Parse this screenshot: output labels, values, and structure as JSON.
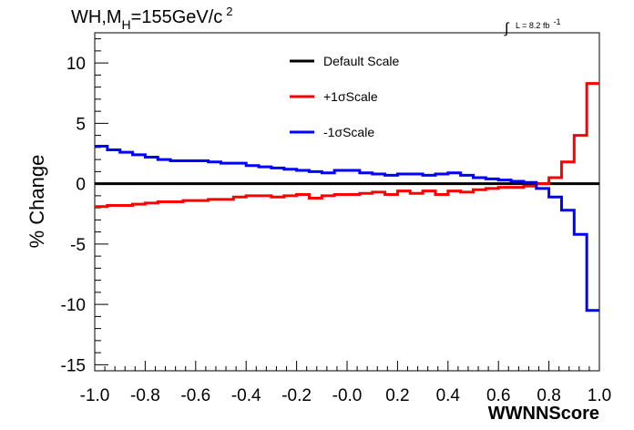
{
  "chart_data": {
    "type": "line",
    "title": {
      "text": "WH,M",
      "subscript": "H",
      "value": "=155GeV/c",
      "superscript": "2"
    },
    "luminosity": {
      "sign": "∫",
      "text": "L = 8.2 fb",
      "superscript": "-1"
    },
    "xlabel": "WWNNScore",
    "ylabel": "% Change",
    "xlim": [
      -1.0,
      1.0
    ],
    "ylim": [
      -15.5,
      12.5
    ],
    "x_ticks": [
      "-1.0",
      "-0.8",
      "-0.6",
      "-0.4",
      "-0.2",
      "-0.0",
      "0.2",
      "0.4",
      "0.6",
      "0.8",
      "1.0"
    ],
    "y_ticks": [
      "10",
      "5",
      "0",
      "-5",
      "-10",
      "-15"
    ],
    "legend_position": "top-center",
    "bin_edges": [
      -1.0,
      -0.95,
      -0.9,
      -0.85,
      -0.8,
      -0.75,
      -0.7,
      -0.65,
      -0.6,
      -0.55,
      -0.5,
      -0.45,
      -0.4,
      -0.35,
      -0.3,
      -0.25,
      -0.2,
      -0.15,
      -0.1,
      -0.05,
      0.0,
      0.05,
      0.1,
      0.15,
      0.2,
      0.25,
      0.3,
      0.35,
      0.4,
      0.45,
      0.5,
      0.55,
      0.6,
      0.65,
      0.7,
      0.75,
      0.8,
      0.85,
      0.9,
      0.95,
      1.0
    ],
    "series": [
      {
        "name": "Default Scale",
        "color": "#000000",
        "values": [
          0,
          0,
          0,
          0,
          0,
          0,
          0,
          0,
          0,
          0,
          0,
          0,
          0,
          0,
          0,
          0,
          0,
          0,
          0,
          0,
          0,
          0,
          0,
          0,
          0,
          0,
          0,
          0,
          0,
          0,
          0,
          0,
          0,
          0,
          0,
          0,
          0,
          0,
          0,
          0
        ]
      },
      {
        "name": "+1σScale",
        "color": "#ff0000",
        "values": [
          -1.9,
          -1.8,
          -1.8,
          -1.7,
          -1.6,
          -1.5,
          -1.5,
          -1.4,
          -1.4,
          -1.3,
          -1.3,
          -1.1,
          -1.0,
          -1.0,
          -1.1,
          -1.0,
          -0.9,
          -1.2,
          -1.0,
          -0.9,
          -0.9,
          -0.8,
          -0.7,
          -0.9,
          -0.6,
          -0.8,
          -0.6,
          -0.9,
          -0.6,
          -0.7,
          -0.5,
          -0.4,
          -0.3,
          -0.3,
          -0.2,
          0.0,
          0.5,
          1.8,
          4.0,
          8.3
        ]
      },
      {
        "name": "-1σScale",
        "color": "#0000ff",
        "values": [
          3.1,
          2.8,
          2.6,
          2.4,
          2.2,
          2.0,
          1.9,
          1.9,
          1.9,
          1.8,
          1.7,
          1.7,
          1.5,
          1.4,
          1.3,
          1.2,
          1.1,
          1.0,
          0.9,
          1.1,
          1.1,
          0.9,
          0.8,
          0.7,
          0.8,
          0.8,
          0.7,
          0.8,
          0.9,
          0.7,
          0.5,
          0.4,
          0.3,
          0.2,
          0.1,
          -0.4,
          -1.1,
          -2.2,
          -4.2,
          -10.5
        ]
      }
    ]
  }
}
